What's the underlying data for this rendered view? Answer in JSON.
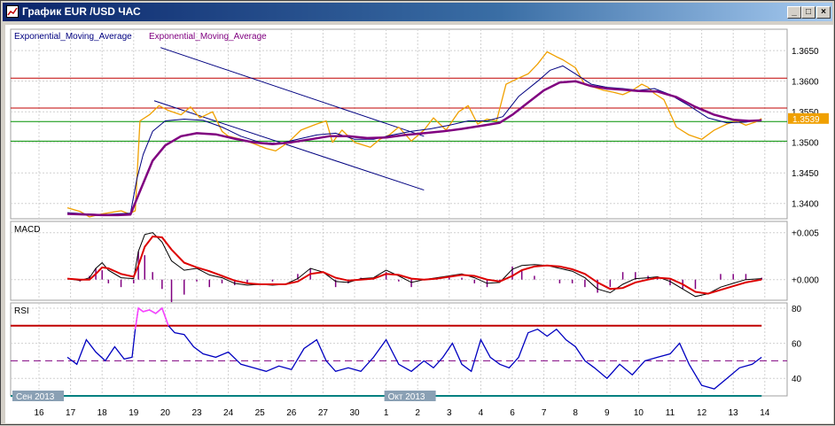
{
  "window": {
    "title": "График EUR /USD  ЧАС",
    "buttons": {
      "minimize": "_",
      "restore": "□",
      "close": "×"
    }
  },
  "colors": {
    "price": "#f0a000",
    "ema_fast": "#000080",
    "ema_slow": "#800080",
    "macd_line": "#000000",
    "macd_signal": "#dd0000",
    "macd_hist": "#800080",
    "rsi_line": "#0000c0",
    "rsi_high": "#ff40ff",
    "resistance": "#c00000",
    "support": "#009000",
    "channel": "#000080",
    "bottom_line": "#008080",
    "price_tag": "#f0a000"
  },
  "chart_data": [
    {
      "id": "price",
      "type": "line",
      "legend": [
        "Exponential_Moving_Average",
        "Exponential_Moving_Average"
      ],
      "ylim": [
        1.3375,
        1.3685
      ],
      "yticks": [
        "1.3400",
        "1.3450",
        "1.3500",
        "1.3550",
        "1.3600",
        "1.3650"
      ],
      "last_price_label": "1.3539",
      "last_price": 1.3539,
      "horizontal_lines": [
        {
          "kind": "resistance",
          "y": 1.3605
        },
        {
          "kind": "resistance",
          "y": 1.3556
        },
        {
          "kind": "support",
          "y": 1.3534
        },
        {
          "kind": "support",
          "y": 1.3502
        }
      ],
      "channel_lines": [
        {
          "x": [
            3.85,
            12.2
          ],
          "y": [
            1.3655,
            1.351
          ]
        },
        {
          "x": [
            3.65,
            12.2
          ],
          "y": [
            1.3568,
            1.3422
          ]
        }
      ],
      "series": [
        {
          "role": "price",
          "x": [
            0.9,
            1.3,
            1.6,
            2.0,
            2.6,
            2.85,
            3.05,
            3.2,
            3.5,
            3.8,
            4.1,
            4.5,
            4.8,
            5.1,
            5.5,
            5.8,
            6.0,
            6.4,
            6.8,
            7.2,
            7.5,
            7.9,
            8.3,
            8.8,
            9.1,
            9.3,
            9.6,
            10.0,
            10.5,
            10.8,
            11.1,
            11.4,
            11.8,
            12.2,
            12.5,
            12.9,
            13.3,
            13.6,
            13.9,
            14.2,
            14.5,
            14.8,
            15.2,
            15.5,
            15.8,
            16.1,
            16.4,
            16.6,
            17.0,
            17.3,
            17.6,
            17.9,
            18.2,
            18.5,
            18.8,
            19.1,
            19.3,
            19.5,
            19.8,
            20.2,
            20.6,
            21.0,
            21.4,
            21.8,
            22.1,
            22.4,
            22.7,
            22.9
          ],
          "y": [
            1.3393,
            1.3387,
            1.3378,
            1.3383,
            1.3388,
            1.3383,
            1.3388,
            1.3535,
            1.3545,
            1.356,
            1.3552,
            1.3545,
            1.3558,
            1.354,
            1.355,
            1.3518,
            1.351,
            1.3505,
            1.3498,
            1.349,
            1.3486,
            1.35,
            1.352,
            1.353,
            1.3535,
            1.35,
            1.352,
            1.35,
            1.3492,
            1.3505,
            1.3512,
            1.3525,
            1.3502,
            1.352,
            1.354,
            1.352,
            1.355,
            1.356,
            1.353,
            1.3538,
            1.3535,
            1.3595,
            1.3605,
            1.3612,
            1.3628,
            1.3648,
            1.364,
            1.3635,
            1.3622,
            1.3594,
            1.359,
            1.3585,
            1.3582,
            1.3578,
            1.3585,
            1.3595,
            1.359,
            1.358,
            1.357,
            1.3525,
            1.3512,
            1.3505,
            1.352,
            1.353,
            1.3535,
            1.3528,
            1.3533,
            1.3539
          ]
        },
        {
          "role": "ema_fast",
          "x": [
            0.9,
            1.5,
            2.0,
            2.5,
            2.9,
            3.1,
            3.3,
            3.6,
            4.0,
            4.6,
            5.2,
            5.8,
            6.4,
            7.0,
            7.6,
            8.2,
            8.8,
            9.4,
            10.0,
            10.6,
            11.2,
            11.8,
            12.4,
            13.0,
            13.6,
            14.2,
            14.7,
            15.2,
            15.8,
            16.2,
            16.6,
            17.0,
            17.5,
            18.0,
            18.5,
            19.0,
            19.5,
            20.0,
            20.6,
            21.2,
            21.8,
            22.4,
            22.9
          ],
          "y": [
            1.3385,
            1.3383,
            1.3382,
            1.3383,
            1.3384,
            1.344,
            1.348,
            1.3518,
            1.3535,
            1.3538,
            1.3536,
            1.3525,
            1.351,
            1.35,
            1.3498,
            1.3505,
            1.3512,
            1.3515,
            1.3505,
            1.3505,
            1.3512,
            1.3518,
            1.3522,
            1.3528,
            1.3535,
            1.3535,
            1.3542,
            1.3575,
            1.36,
            1.3618,
            1.3625,
            1.3612,
            1.3595,
            1.359,
            1.3588,
            1.3585,
            1.3588,
            1.3578,
            1.356,
            1.354,
            1.3532,
            1.3533,
            1.3537
          ]
        },
        {
          "role": "ema_slow",
          "x": [
            0.9,
            1.5,
            2.0,
            2.5,
            2.9,
            3.2,
            3.6,
            4.0,
            4.5,
            5.0,
            5.6,
            6.2,
            6.8,
            7.4,
            8.0,
            8.6,
            9.2,
            9.8,
            10.4,
            11.0,
            11.6,
            12.2,
            12.8,
            13.4,
            14.0,
            14.6,
            15.0,
            15.5,
            16.0,
            16.5,
            17.0,
            17.5,
            18.0,
            18.5,
            19.0,
            19.6,
            20.2,
            20.8,
            21.4,
            22.0,
            22.5,
            22.9
          ],
          "y": [
            1.3383,
            1.3382,
            1.3381,
            1.3381,
            1.3382,
            1.342,
            1.347,
            1.3495,
            1.351,
            1.3515,
            1.3513,
            1.3506,
            1.35,
            1.3497,
            1.35,
            1.3505,
            1.351,
            1.351,
            1.3507,
            1.3508,
            1.3512,
            1.3515,
            1.3518,
            1.3522,
            1.3527,
            1.3532,
            1.3545,
            1.3565,
            1.3585,
            1.3598,
            1.36,
            1.3592,
            1.3588,
            1.3586,
            1.3584,
            1.3583,
            1.3574,
            1.3558,
            1.3545,
            1.3537,
            1.3535,
            1.3536
          ]
        }
      ]
    },
    {
      "id": "macd",
      "type": "line",
      "label": "MACD",
      "ylim": [
        -0.0022,
        0.0062
      ],
      "yticks": [
        "+0.005",
        "+0.000"
      ],
      "ytick_values": [
        0.005,
        0.0
      ],
      "series": [
        {
          "role": "macd_line",
          "x": [
            0.9,
            1.3,
            1.6,
            1.8,
            2.0,
            2.2,
            2.6,
            3.0,
            3.15,
            3.35,
            3.6,
            3.9,
            4.2,
            4.6,
            5.0,
            5.4,
            5.8,
            6.2,
            6.6,
            7.0,
            7.4,
            7.8,
            8.2,
            8.6,
            9.0,
            9.4,
            9.8,
            10.2,
            10.6,
            11.0,
            11.4,
            11.8,
            12.2,
            12.6,
            13.0,
            13.4,
            13.8,
            14.2,
            14.6,
            15.0,
            15.3,
            15.7,
            16.1,
            16.5,
            16.9,
            17.3,
            17.7,
            18.1,
            18.5,
            18.9,
            19.3,
            19.6,
            20.0,
            20.4,
            20.8,
            21.2,
            21.6,
            22.0,
            22.4,
            22.9
          ],
          "y": [
            0.0001,
            -0.0001,
            0.0002,
            0.0012,
            0.0018,
            0.001,
            0.0002,
            0.0001,
            0.003,
            0.0048,
            0.005,
            0.004,
            0.002,
            0.001,
            0.0012,
            0.0005,
            0.0002,
            -0.0004,
            -0.0006,
            -0.0005,
            -0.0006,
            -0.0005,
            0.0001,
            0.0012,
            0.0008,
            -0.0002,
            -0.0003,
            0.0001,
            0.0002,
            0.001,
            0.0004,
            -0.0003,
            0.0,
            0.0002,
            0.0004,
            0.0006,
            0.0002,
            -0.0004,
            -0.0003,
            0.0011,
            0.0015,
            0.0016,
            0.0015,
            0.0012,
            0.0009,
            0.0002,
            -0.001,
            -0.0014,
            -0.0005,
            0.0001,
            0.0002,
            0.0003,
            -0.0002,
            -0.001,
            -0.0018,
            -0.0015,
            -0.0008,
            -0.0004,
            0.0,
            0.0001
          ]
        },
        {
          "role": "macd_signal",
          "x": [
            0.9,
            1.3,
            1.6,
            1.8,
            2.0,
            2.2,
            2.6,
            3.0,
            3.15,
            3.35,
            3.6,
            3.9,
            4.2,
            4.6,
            5.0,
            5.4,
            5.8,
            6.2,
            6.6,
            7.0,
            7.4,
            7.8,
            8.2,
            8.6,
            9.0,
            9.4,
            9.8,
            10.2,
            10.6,
            11.0,
            11.4,
            11.8,
            12.2,
            12.6,
            13.0,
            13.4,
            13.8,
            14.2,
            14.6,
            15.0,
            15.3,
            15.7,
            16.1,
            16.5,
            16.9,
            17.3,
            17.7,
            18.1,
            18.5,
            18.9,
            19.3,
            19.6,
            20.0,
            20.4,
            20.8,
            21.2,
            21.6,
            22.0,
            22.4,
            22.9
          ],
          "y": [
            0.0001,
            0.0,
            0.0,
            0.0006,
            0.0013,
            0.0012,
            0.0006,
            0.0003,
            0.0015,
            0.0035,
            0.0046,
            0.0045,
            0.0032,
            0.0018,
            0.0013,
            0.0009,
            0.0004,
            -0.0001,
            -0.0004,
            -0.0005,
            -0.0005,
            -0.0005,
            -0.0002,
            0.0006,
            0.0008,
            0.0002,
            -0.0001,
            0.0,
            0.0001,
            0.0006,
            0.0005,
            0.0001,
            0.0,
            0.0001,
            0.0003,
            0.0005,
            0.0004,
            0.0,
            -0.0002,
            0.0004,
            0.001,
            0.0014,
            0.0015,
            0.0014,
            0.0011,
            0.0006,
            -0.0003,
            -0.001,
            -0.0009,
            -0.0003,
            0.0,
            0.0002,
            0.0001,
            -0.0005,
            -0.0013,
            -0.0015,
            -0.0011,
            -0.0007,
            -0.0003,
            0.0
          ]
        }
      ]
    },
    {
      "id": "rsi",
      "type": "line",
      "label": "RSI",
      "ylim": [
        30,
        83
      ],
      "yticks": [
        "80",
        "60",
        "40"
      ],
      "ytick_values": [
        80,
        60,
        40
      ],
      "levels": [
        {
          "kind": "high",
          "y": 70
        },
        {
          "kind": "mid",
          "y": 50
        },
        {
          "kind": "low",
          "y": 30
        }
      ],
      "series": [
        {
          "role": "rsi_line",
          "x": [
            0.9,
            1.2,
            1.5,
            1.8,
            2.1,
            2.4,
            2.7,
            2.95,
            3.05,
            3.15,
            3.3,
            3.5,
            3.7,
            3.9,
            4.1,
            4.3,
            4.6,
            4.9,
            5.2,
            5.6,
            6.0,
            6.4,
            6.8,
            7.2,
            7.6,
            8.0,
            8.4,
            8.8,
            9.1,
            9.4,
            9.8,
            10.2,
            10.6,
            11.0,
            11.4,
            11.8,
            12.2,
            12.5,
            12.8,
            13.1,
            13.4,
            13.7,
            14.0,
            14.3,
            14.6,
            14.9,
            15.2,
            15.5,
            15.8,
            16.1,
            16.4,
            16.7,
            17.0,
            17.3,
            17.6,
            18.0,
            18.4,
            18.8,
            19.2,
            19.6,
            20.0,
            20.3,
            20.6,
            21.0,
            21.4,
            21.8,
            22.2,
            22.6,
            22.9
          ],
          "y": [
            52,
            48,
            62,
            55,
            50,
            58,
            51,
            52,
            68,
            80,
            78,
            79,
            77,
            80,
            70,
            66,
            65,
            58,
            54,
            52,
            55,
            48,
            46,
            44,
            47,
            45,
            57,
            62,
            50,
            44,
            46,
            44,
            52,
            62,
            48,
            44,
            50,
            46,
            52,
            60,
            48,
            44,
            62,
            52,
            48,
            46,
            52,
            66,
            68,
            64,
            68,
            62,
            58,
            50,
            46,
            40,
            48,
            42,
            50,
            52,
            54,
            60,
            48,
            36,
            34,
            40,
            46,
            48,
            52
          ]
        }
      ]
    }
  ],
  "x_axis": {
    "tick_labels": [
      "16",
      "17",
      "18",
      "19",
      "20",
      "23",
      "24",
      "25",
      "26",
      "27",
      "30",
      "1",
      "2",
      "3",
      "4",
      "6",
      "7",
      "8",
      "9",
      "10",
      "11",
      "12",
      "13",
      "14"
    ],
    "month_labels": [
      {
        "text": "Сен 2013",
        "at": 0
      },
      {
        "text": "Окт 2013",
        "at": 11
      }
    ]
  }
}
